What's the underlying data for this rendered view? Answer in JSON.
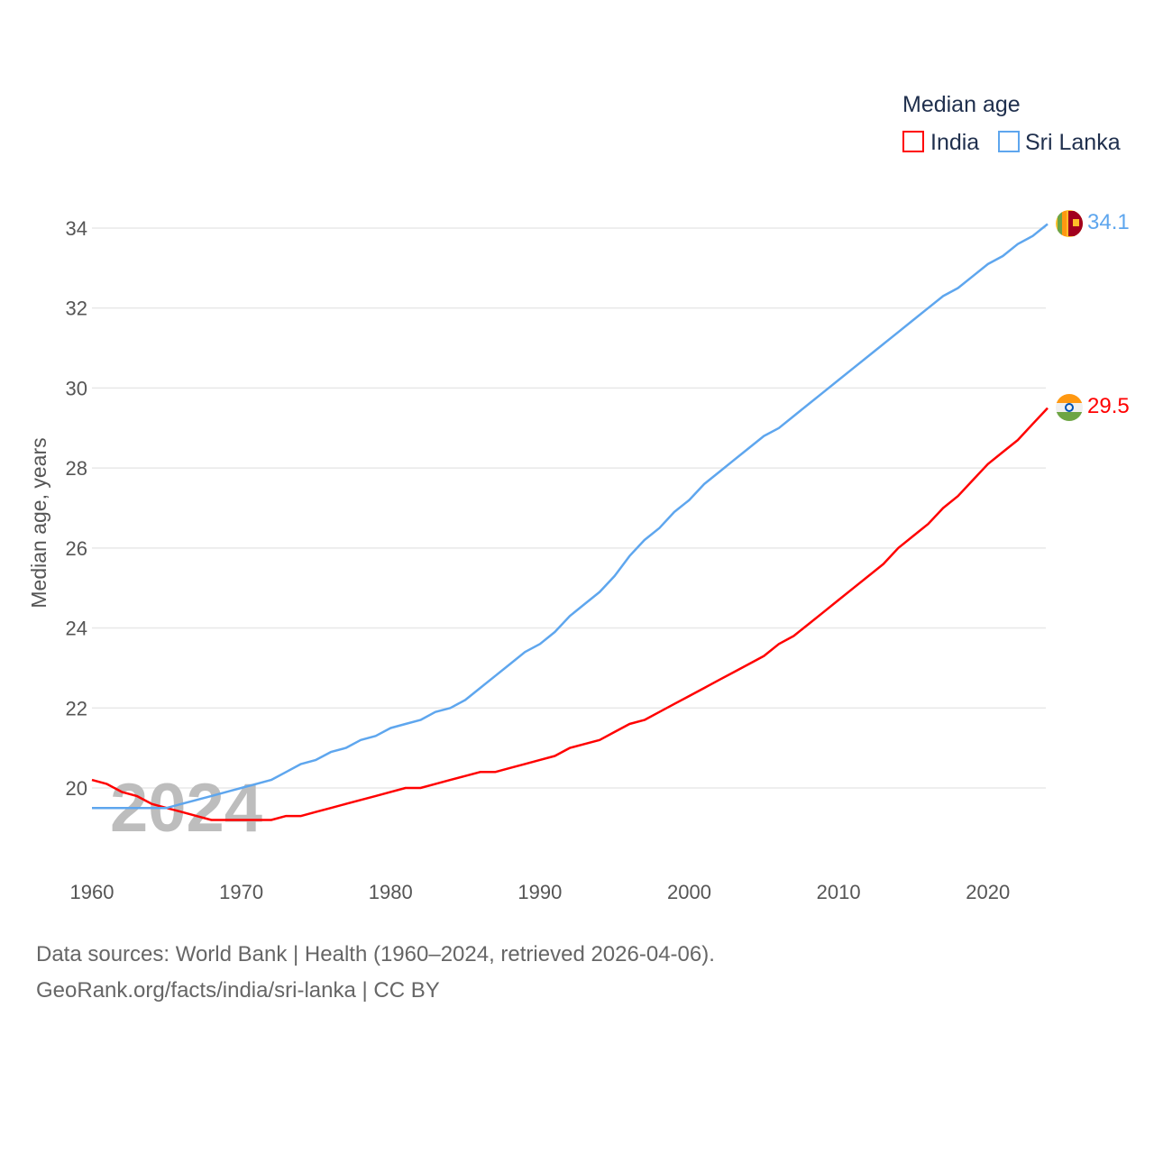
{
  "chart_data": {
    "type": "line",
    "title": "",
    "ylabel": "Median age, years",
    "xlabel": "",
    "xlim": [
      1960,
      2024
    ],
    "ylim": [
      18.5,
      35
    ],
    "yticks": [
      20,
      22,
      24,
      26,
      28,
      30,
      32,
      34
    ],
    "xticks": [
      1960,
      1970,
      1980,
      1990,
      2000,
      2010,
      2020
    ],
    "grid": true,
    "watermark_year": "2024",
    "legend": {
      "title": "Median age",
      "placement": "top-right"
    },
    "x_start": 1960,
    "series": [
      {
        "name": "India",
        "color": "#ff0000",
        "end_label": "29.5",
        "values": [
          20.2,
          20.1,
          19.9,
          19.8,
          19.6,
          19.5,
          19.4,
          19.3,
          19.2,
          19.2,
          19.2,
          19.2,
          19.2,
          19.3,
          19.3,
          19.4,
          19.5,
          19.6,
          19.7,
          19.8,
          19.9,
          20.0,
          20.0,
          20.1,
          20.2,
          20.3,
          20.4,
          20.4,
          20.5,
          20.6,
          20.7,
          20.8,
          21.0,
          21.1,
          21.2,
          21.4,
          21.6,
          21.7,
          21.9,
          22.1,
          22.3,
          22.5,
          22.7,
          22.9,
          23.1,
          23.3,
          23.6,
          23.8,
          24.1,
          24.4,
          24.7,
          25.0,
          25.3,
          25.6,
          26.0,
          26.3,
          26.6,
          27.0,
          27.3,
          27.7,
          28.1,
          28.4,
          28.7,
          29.1,
          29.5
        ]
      },
      {
        "name": "Sri Lanka",
        "color": "#5ea6ee",
        "end_label": "34.1",
        "values": [
          19.5,
          19.5,
          19.5,
          19.5,
          19.5,
          19.5,
          19.6,
          19.7,
          19.8,
          19.9,
          20.0,
          20.1,
          20.2,
          20.4,
          20.6,
          20.7,
          20.9,
          21.0,
          21.2,
          21.3,
          21.5,
          21.6,
          21.7,
          21.9,
          22.0,
          22.2,
          22.5,
          22.8,
          23.1,
          23.4,
          23.6,
          23.9,
          24.3,
          24.6,
          24.9,
          25.3,
          25.8,
          26.2,
          26.5,
          26.9,
          27.2,
          27.6,
          27.9,
          28.2,
          28.5,
          28.8,
          29.0,
          29.3,
          29.6,
          29.9,
          30.2,
          30.5,
          30.8,
          31.1,
          31.4,
          31.7,
          32.0,
          32.3,
          32.5,
          32.8,
          33.1,
          33.3,
          33.6,
          33.8,
          34.1
        ]
      }
    ]
  },
  "footer": {
    "line1": "Data sources: World Bank | Health (1960–2024, retrieved 2026-04-06).",
    "line2": "GeoRank.org/facts/india/sri-lanka | CC BY"
  }
}
